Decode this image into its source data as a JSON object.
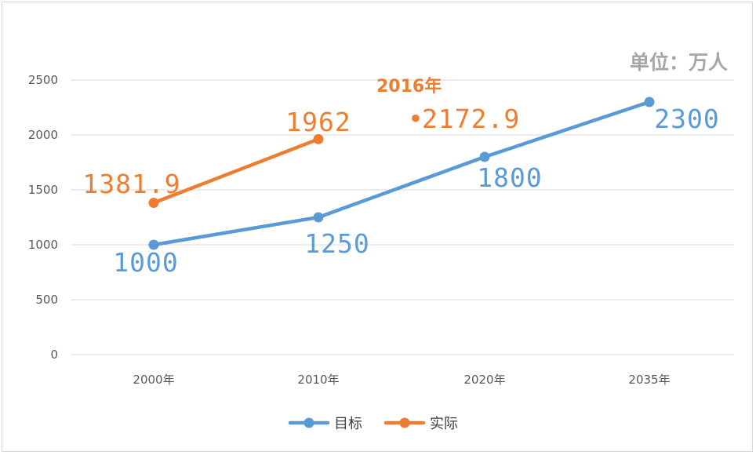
{
  "chart_data": {
    "type": "line",
    "unit_label": "单位：万人",
    "categories": [
      "2000年",
      "2010年",
      "2020年",
      "2035年"
    ],
    "ylim": [
      0,
      2500
    ],
    "y_ticks": [
      0,
      500,
      1000,
      1500,
      2000,
      2500
    ],
    "grid": true,
    "legend_position": "bottom",
    "series": [
      {
        "name": "目标",
        "color": "#5b9bd5",
        "values": [
          1000,
          1250,
          1800,
          2300
        ],
        "labels": [
          "1000",
          "1250",
          "1800",
          "2300"
        ]
      },
      {
        "name": "实际",
        "color": "#ed7d31",
        "values": [
          1381.9,
          1962,
          null,
          null
        ],
        "labels": [
          "1381.9",
          "1962"
        ]
      }
    ],
    "annotation": {
      "year_label": "2016年",
      "value_label": "2172.9",
      "color": "#ed7d31"
    }
  }
}
